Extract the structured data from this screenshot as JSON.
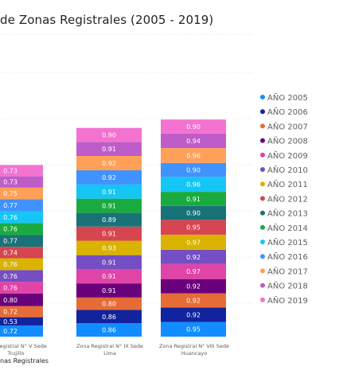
{
  "chart_data": {
    "type": "bar",
    "stacked": true,
    "title": "de Zonas Registrales (2005 - 2019)",
    "xlabel": "nas Registrales",
    "categories": [
      [
        "ona Registral N° V Sede",
        "Trujillo"
      ],
      [
        "Zona Registral N° IX Sede",
        "Lima"
      ],
      [
        "Zona Registral N° VIII Sede",
        "Huancayo"
      ]
    ],
    "series": [
      {
        "name": "AÑO 2005",
        "color": "#118DFF",
        "values": [
          0.72,
          0.86,
          0.95
        ]
      },
      {
        "name": "AÑO 2006",
        "color": "#12239E",
        "values": [
          0.53,
          0.86,
          0.92
        ]
      },
      {
        "name": "AÑO 2007",
        "color": "#E66C37",
        "values": [
          0.72,
          0.8,
          0.92
        ]
      },
      {
        "name": "AÑO 2008",
        "color": "#6B007B",
        "values": [
          0.8,
          0.91,
          0.92
        ]
      },
      {
        "name": "AÑO 2009",
        "color": "#E044A7",
        "values": [
          0.76,
          0.91,
          0.97
        ]
      },
      {
        "name": "AÑO 2010",
        "color": "#744EC2",
        "values": [
          0.76,
          0.91,
          0.92
        ]
      },
      {
        "name": "AÑO 2011",
        "color": "#D9B300",
        "values": [
          0.76,
          0.93,
          0.97
        ]
      },
      {
        "name": "AÑO 2012",
        "color": "#D64550",
        "values": [
          0.74,
          0.91,
          0.95
        ]
      },
      {
        "name": "AÑO 2013",
        "color": "#197278",
        "values": [
          0.77,
          0.89,
          0.9
        ]
      },
      {
        "name": "AÑO 2014",
        "color": "#1AAB40",
        "values": [
          0.76,
          0.91,
          0.91
        ]
      },
      {
        "name": "AÑO 2015",
        "color": "#15C6F4",
        "values": [
          0.76,
          0.91,
          0.96
        ]
      },
      {
        "name": "AÑO 2016",
        "color": "#4092FF",
        "values": [
          0.77,
          0.92,
          0.9
        ]
      },
      {
        "name": "AÑO 2017",
        "color": "#FFA058",
        "values": [
          0.75,
          0.92,
          0.96
        ]
      },
      {
        "name": "AÑO 2018",
        "color": "#BE5DC9",
        "values": [
          0.73,
          0.91,
          0.94
        ]
      },
      {
        "name": "AÑO 2019",
        "color": "#F472D0",
        "values": [
          0.73,
          0.9,
          0.9
        ]
      }
    ],
    "grid": true,
    "legend_position": "right"
  }
}
